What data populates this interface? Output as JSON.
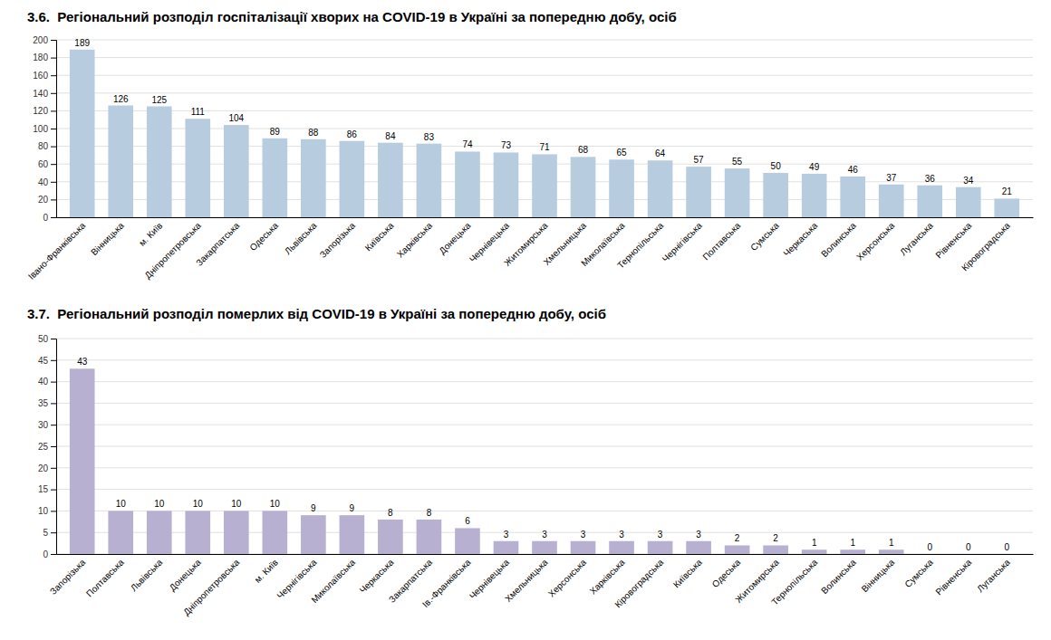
{
  "chart_data": [
    {
      "type": "bar",
      "title": "3.6.  Регіональний розподіл госпіталізації хворих на COVID-19 в Україні за попередню добу, осіб",
      "categories": [
        "Івано-Франківська",
        "Вінницька",
        "м. Київ",
        "Дніпропетровська",
        "Закарпатська",
        "Одеська",
        "Львівська",
        "Запорізька",
        "Київська",
        "Харківська",
        "Донецька",
        "Чернівецька",
        "Житомирська",
        "Хмельницька",
        "Миколаївська",
        "Тернопільська",
        "Чернігівська",
        "Полтавська",
        "Сумська",
        "Черкаська",
        "Волинська",
        "Херсонська",
        "Луганська",
        "Рівненська",
        "Кіровоградська"
      ],
      "values": [
        189,
        126,
        125,
        111,
        104,
        89,
        88,
        86,
        84,
        83,
        74,
        73,
        71,
        68,
        65,
        64,
        57,
        55,
        50,
        49,
        46,
        37,
        36,
        34,
        21
      ],
      "color": "#b8ccdf",
      "ylim": [
        0,
        200
      ],
      "yticks": [
        0,
        20,
        40,
        60,
        80,
        100,
        120,
        140,
        160,
        180,
        200
      ],
      "grid": true,
      "data_labels": true
    },
    {
      "type": "bar",
      "title": "3.7.  Регіональний розподіл померлих від COVID-19 в Україні за попередню добу, осіб",
      "categories": [
        "Запорізька",
        "Полтавська",
        "Львівська",
        "Донецька",
        "Дніпропетровська",
        "м. Київ",
        "Чернігівська",
        "Миколаївська",
        "Черкаська",
        "Закарпатська",
        "Ів.-Франківська",
        "Чернівецька",
        "Хмельницька",
        "Херсонська",
        "Харківська",
        "Кіровоградська",
        "Київська",
        "Одеська",
        "Житомирська",
        "Тернопільська",
        "Волинська",
        "Вінницька",
        "Сумська",
        "Рівненська",
        "Луганська"
      ],
      "values": [
        43,
        10,
        10,
        10,
        10,
        10,
        9,
        9,
        8,
        8,
        6,
        3,
        3,
        3,
        3,
        3,
        3,
        2,
        2,
        1,
        1,
        1,
        0,
        0,
        0
      ],
      "color": "#b8b0d0",
      "ylim": [
        0,
        50
      ],
      "yticks": [
        0,
        5,
        10,
        15,
        20,
        25,
        30,
        35,
        40,
        45,
        50
      ],
      "grid": true,
      "data_labels": true
    }
  ]
}
